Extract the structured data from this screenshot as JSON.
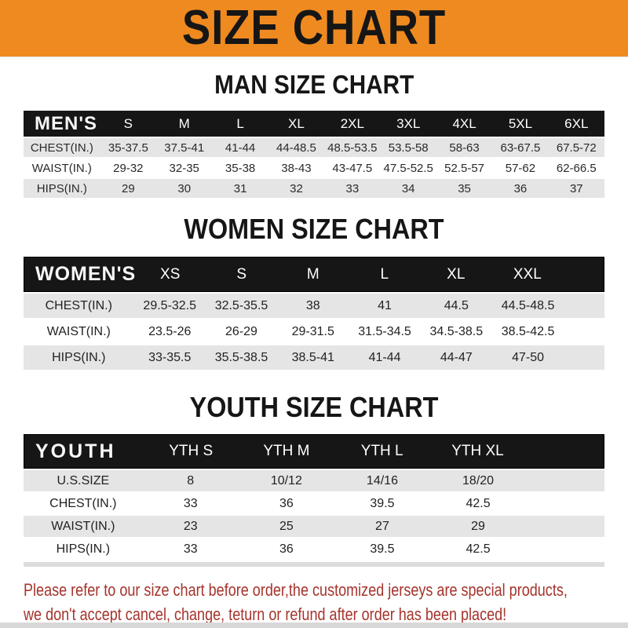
{
  "banner": {
    "title": "SIZE CHART"
  },
  "colors": {
    "banner_orange": "#ee8a20",
    "header_bar_black": "#161616",
    "row_gray": "#e5e5e5",
    "row_white": "#ffffff",
    "disclaimer_red": "#a5342c"
  },
  "sections": [
    {
      "title": "MAN SIZE CHART",
      "header_label": "MEN'S",
      "columns": [
        "S",
        "M",
        "L",
        "XL",
        "2XL",
        "3XL",
        "4XL",
        "5XL",
        "6XL"
      ],
      "rows": [
        {
          "label": "CHEST(IN.)",
          "values": [
            "35-37.5",
            "37.5-41",
            "41-44",
            "44-48.5",
            "48.5-53.5",
            "53.5-58",
            "58-63",
            "63-67.5",
            "67.5-72"
          ]
        },
        {
          "label": "WAIST(IN.)",
          "values": [
            "29-32",
            "32-35",
            "35-38",
            "38-43",
            "43-47.5",
            "47.5-52.5",
            "52.5-57",
            "57-62",
            "62-66.5"
          ]
        },
        {
          "label": "HIPS(IN.)",
          "values": [
            "29",
            "30",
            "31",
            "32",
            "33",
            "34",
            "35",
            "36",
            "37"
          ]
        }
      ]
    },
    {
      "title": "WOMEN SIZE CHART",
      "header_label": "WOMEN'S",
      "columns": [
        "XS",
        "S",
        "M",
        "L",
        "XL",
        "XXL"
      ],
      "rows": [
        {
          "label": "CHEST(IN.)",
          "values": [
            "29.5-32.5",
            "32.5-35.5",
            "38",
            "41",
            "44.5",
            "44.5-48.5"
          ]
        },
        {
          "label": "WAIST(IN.)",
          "values": [
            "23.5-26",
            "26-29",
            "29-31.5",
            "31.5-34.5",
            "34.5-38.5",
            "38.5-42.5"
          ]
        },
        {
          "label": "HIPS(IN.)",
          "values": [
            "33-35.5",
            "35.5-38.5",
            "38.5-41",
            "41-44",
            "44-47",
            "47-50"
          ]
        }
      ]
    },
    {
      "title": "YOUTH SIZE CHART",
      "header_label": "YOUTH",
      "columns": [
        "YTH S",
        "YTH M",
        "YTH L",
        "YTH XL"
      ],
      "rows": [
        {
          "label": "U.S.SIZE",
          "values": [
            "8",
            "10/12",
            "14/16",
            "18/20"
          ]
        },
        {
          "label": "CHEST(IN.)",
          "values": [
            "33",
            "36",
            "39.5",
            "42.5"
          ]
        },
        {
          "label": "WAIST(IN.)",
          "values": [
            "23",
            "25",
            "27",
            "29"
          ]
        },
        {
          "label": "HIPS(IN.)",
          "values": [
            "33",
            "36",
            "39.5",
            "42.5"
          ]
        }
      ]
    }
  ],
  "footer": {
    "line1": "Please refer to our size chart before order,the customized jerseys are special products,",
    "line2": "we don't accept cancel, change, teturn or refund after order has been placed!"
  }
}
